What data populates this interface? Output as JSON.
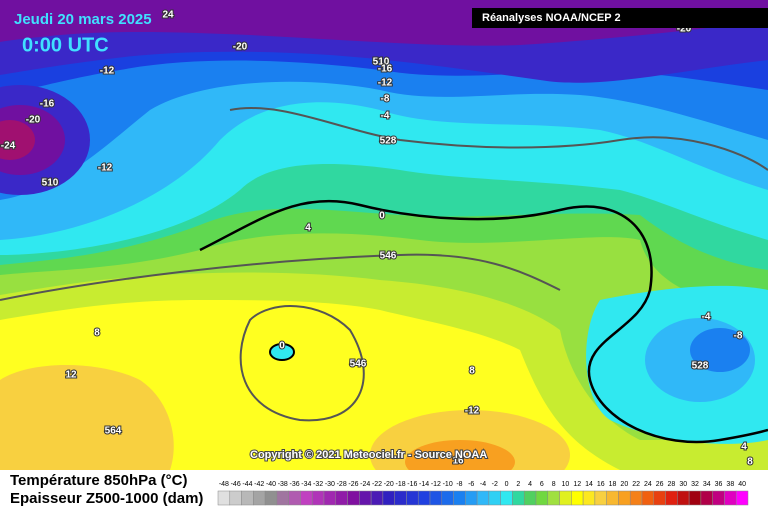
{
  "header": {
    "date": "Jeudi 20 mars 2025",
    "time": "0:00 UTC",
    "source": "Réanalyses NOAA/NCEP 2"
  },
  "map": {
    "contour_labels": [
      24,
      -20,
      -12,
      510,
      -16,
      -12,
      -8,
      -4,
      528,
      -16,
      -20,
      -24,
      -12,
      510,
      0,
      4,
      546,
      8,
      0,
      546,
      12,
      8,
      -12,
      564,
      -4,
      -8,
      528,
      4,
      8,
      16,
      -20
    ],
    "copyright": "Copyright © 2021 Meteociel.fr - Source NOAA"
  },
  "legend": {
    "temperature_label": "Température 850hPa (°C)",
    "thickness_label": "Epaisseur Z500-1000 (dam)",
    "scale": [
      -48,
      -46,
      -44,
      -42,
      -40,
      -38,
      -36,
      -34,
      -32,
      -30,
      -28,
      -26,
      -24,
      -22,
      -20,
      -18,
      -16,
      -14,
      -12,
      -10,
      -8,
      -6,
      -4,
      -2,
      0,
      2,
      4,
      6,
      8,
      10,
      12,
      14,
      16,
      18,
      20,
      22,
      24,
      26,
      28,
      30,
      32,
      34,
      36,
      38,
      40
    ]
  }
}
